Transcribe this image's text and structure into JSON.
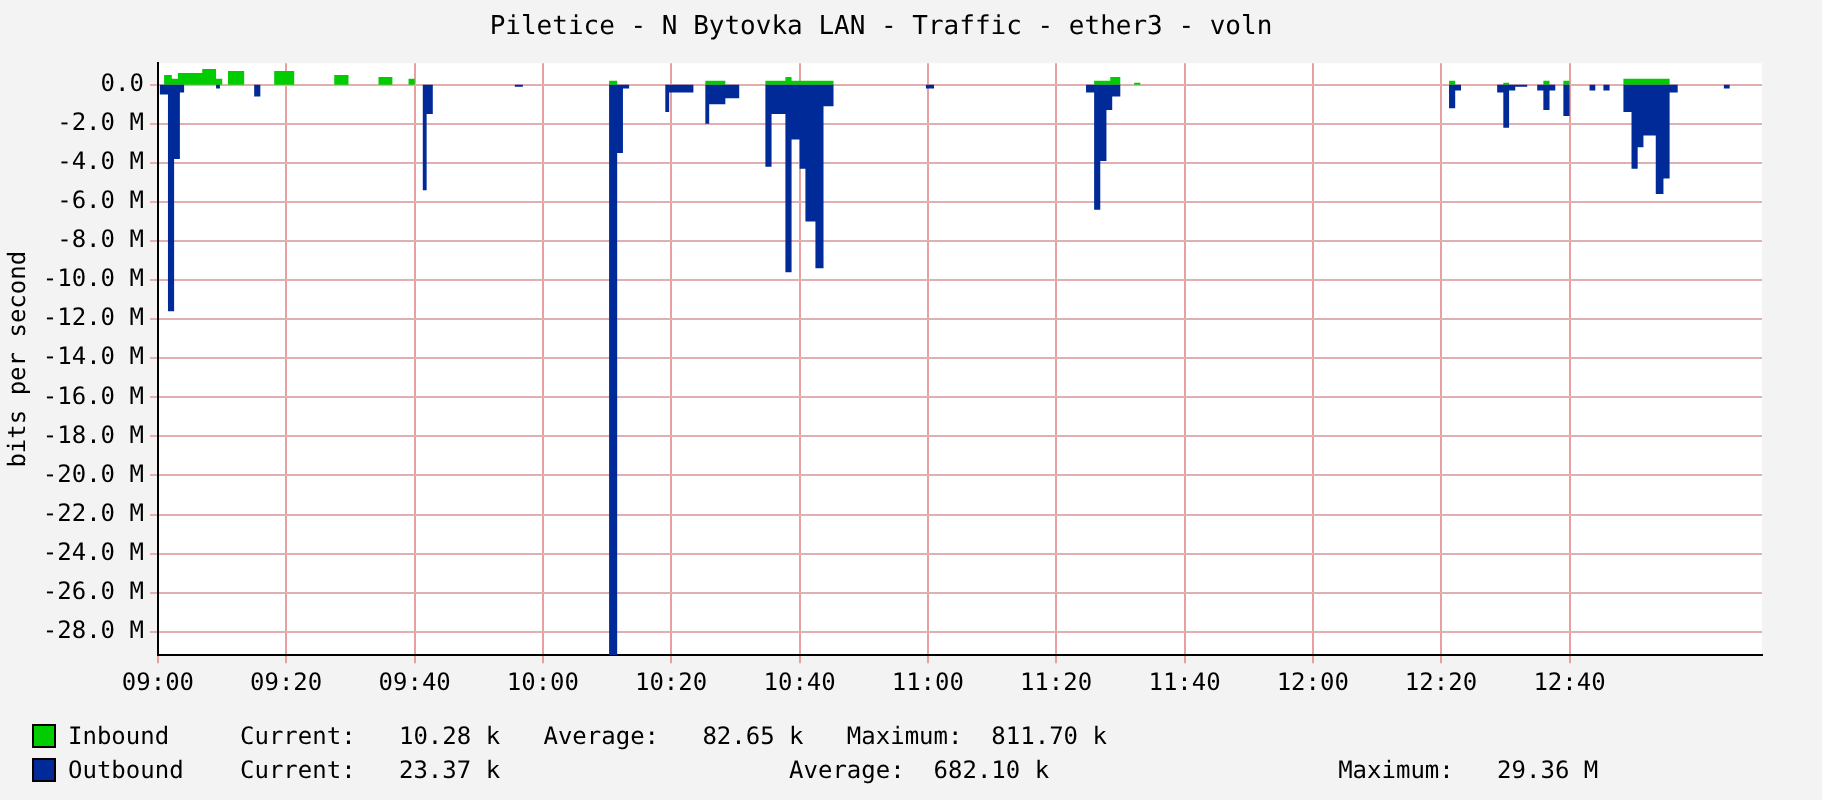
{
  "chart_data": {
    "type": "area",
    "title": "Piletice - N Bytovka LAN - Traffic - ether3 - voln",
    "ylabel": "bits per second",
    "x": [
      9.0,
      9.005,
      9.016,
      9.026,
      9.036,
      9.042,
      9.052,
      9.057,
      9.068,
      9.115,
      9.151,
      9.161,
      9.167,
      9.182,
      9.224,
      9.25,
      9.266,
      9.302,
      9.354,
      9.458,
      9.495,
      9.573,
      9.609,
      9.651,
      9.667,
      9.688,
      9.698,
      9.714,
      9.927,
      9.948,
      10.172,
      10.193,
      10.208,
      10.224,
      10.318,
      10.328,
      10.391,
      10.422,
      10.432,
      10.474,
      10.51,
      10.578,
      10.594,
      10.63,
      10.646,
      10.667,
      10.682,
      10.708,
      10.729,
      10.755,
      10.995,
      11.016,
      11.411,
      11.432,
      11.448,
      11.464,
      11.474,
      11.479,
      11.5,
      11.536,
      11.552,
      12.354,
      12.37,
      12.385,
      12.479,
      12.495,
      12.51,
      12.526,
      12.557,
      12.583,
      12.599,
      12.615,
      12.63,
      12.651,
      12.667,
      12.719,
      12.734,
      12.755,
      12.771,
      12.807,
      12.828,
      12.844,
      12.859,
      12.891,
      12.911,
      12.927,
      12.948,
      13.068,
      13.083,
      13.167
    ],
    "series": [
      {
        "name": "Inbound",
        "color": "#00cc00",
        "values": [
          0,
          0,
          0.5,
          0.5,
          0.3,
          0.3,
          0.6,
          0.6,
          0.6,
          0.8,
          0.3,
          0.3,
          0,
          0.7,
          0,
          0,
          0,
          0.7,
          0,
          0.5,
          0,
          0.4,
          0,
          0.3,
          0,
          0,
          0,
          0,
          0,
          0,
          0.2,
          0,
          0,
          0,
          0,
          0,
          0,
          0.2,
          0.2,
          0,
          0,
          0.2,
          0.2,
          0.4,
          0.2,
          0.2,
          0.2,
          0.2,
          0.2,
          0,
          0,
          0,
          0,
          0.2,
          0.2,
          0.2,
          0.4,
          0.4,
          0,
          0.1,
          0,
          0.2,
          0,
          0,
          0,
          0.1,
          0,
          0,
          0,
          0,
          0.2,
          0,
          0,
          0.2,
          0,
          0,
          0,
          0,
          0,
          0.3,
          0.3,
          0.3,
          0.3,
          0.3,
          0.3,
          0,
          0,
          0,
          0,
          0
        ]
      },
      {
        "name": "Outbound",
        "color": "#002a97",
        "values": [
          0,
          -0.5,
          -0.5,
          -11.6,
          -11.6,
          -3.8,
          -3.8,
          -0.4,
          0,
          0,
          -0.2,
          0,
          0,
          0,
          0,
          -0.6,
          0,
          0,
          0,
          0,
          0,
          0,
          0,
          0,
          0,
          -5.4,
          -1.5,
          0,
          -0.1,
          0,
          -29.2,
          -3.5,
          -0.2,
          0,
          -1.4,
          -0.4,
          0,
          -2.0,
          -1.0,
          -0.7,
          0,
          -4.2,
          -1.5,
          -9.6,
          -2.8,
          -4.3,
          -7.0,
          -9.4,
          -1.1,
          0,
          -0.2,
          0,
          -0.4,
          -6.4,
          -3.9,
          -1.3,
          -1.3,
          -0.6,
          0,
          0,
          0,
          -1.2,
          -0.3,
          0,
          -0.4,
          -2.2,
          -0.3,
          -0.1,
          0,
          -0.3,
          -1.3,
          -0.3,
          0,
          -1.6,
          0,
          -0.3,
          0,
          -0.3,
          0,
          -1.4,
          -4.3,
          -3.2,
          -2.6,
          -5.6,
          -4.8,
          -0.4,
          0,
          -0.2,
          0,
          0
        ]
      }
    ],
    "xlim": [
      9.0,
      13.167
    ],
    "xticks": [
      {
        "value": 9.0,
        "label": "09:00"
      },
      {
        "value": 9.333,
        "label": "09:20"
      },
      {
        "value": 9.667,
        "label": "09:40"
      },
      {
        "value": 10.0,
        "label": "10:00"
      },
      {
        "value": 10.333,
        "label": "10:20"
      },
      {
        "value": 10.667,
        "label": "10:40"
      },
      {
        "value": 11.0,
        "label": "11:00"
      },
      {
        "value": 11.333,
        "label": "11:20"
      },
      {
        "value": 11.667,
        "label": "11:40"
      },
      {
        "value": 12.0,
        "label": "12:00"
      },
      {
        "value": 12.333,
        "label": "12:20"
      },
      {
        "value": 12.667,
        "label": "12:40"
      }
    ],
    "ylim": [
      -29.2,
      1.1
    ],
    "yticks": [
      {
        "value": 0,
        "label": "0.0"
      },
      {
        "value": -2,
        "label": "-2.0 M"
      },
      {
        "value": -4,
        "label": "-4.0 M"
      },
      {
        "value": -6,
        "label": "-6.0 M"
      },
      {
        "value": -8,
        "label": "-8.0 M"
      },
      {
        "value": -10,
        "label": "-10.0 M"
      },
      {
        "value": -12,
        "label": "-12.0 M"
      },
      {
        "value": -14,
        "label": "-14.0 M"
      },
      {
        "value": -16,
        "label": "-16.0 M"
      },
      {
        "value": -18,
        "label": "-18.0 M"
      },
      {
        "value": -20,
        "label": "-20.0 M"
      },
      {
        "value": -22,
        "label": "-22.0 M"
      },
      {
        "value": -24,
        "label": "-24.0 M"
      },
      {
        "value": -26,
        "label": "-26.0 M"
      },
      {
        "value": -28,
        "label": "-28.0 M"
      }
    ],
    "grid": true,
    "legend": "bottom",
    "annotations": [
      "Current:   10.28 k   Average:   82.65 k   Maximum:  811.70 k",
      "Current:   23.37 k                    Average:  682.10 k                    Maximum:   29.36 M"
    ]
  }
}
